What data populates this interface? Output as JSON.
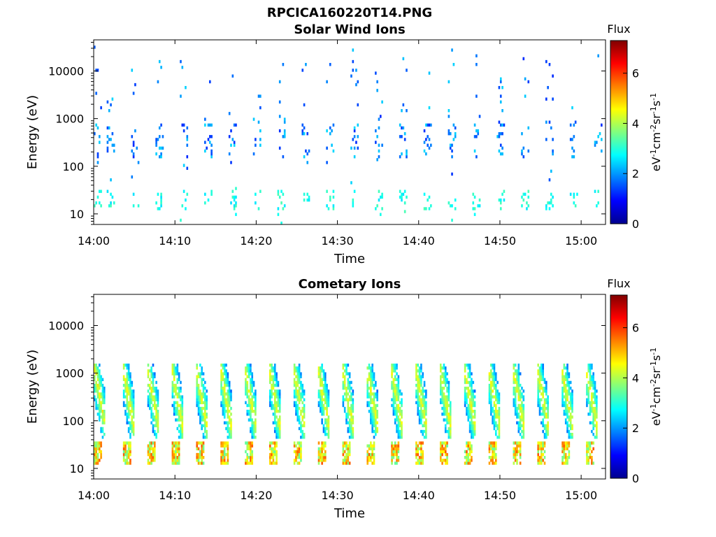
{
  "figure_title": "RPCICA160220T14.PNG",
  "colorbar": {
    "label": "Flux",
    "unit_parts": [
      "eV",
      "-1",
      "cm",
      "-2",
      "sr",
      "-1",
      "s",
      "-1"
    ],
    "range": [
      0,
      7.3
    ],
    "ticks": [
      "0",
      "2",
      "4",
      "6"
    ],
    "colormap": "jet"
  },
  "chart_data": [
    {
      "type": "heatmap",
      "title": "Solar Wind Ions",
      "xlabel": "Time",
      "ylabel": "Energy (eV)",
      "yscale": "log",
      "ylim": [
        6,
        45000
      ],
      "xlim": [
        "14:00",
        "15:03"
      ],
      "xticks": [
        "14:00",
        "14:10",
        "14:20",
        "14:30",
        "14:40",
        "14:50",
        "15:00"
      ],
      "yticks": [
        "10",
        "100",
        "1000",
        "10000"
      ],
      "z_range": [
        0,
        7.3
      ],
      "pattern": "sparse",
      "bursts_min": [
        0,
        1.5,
        4.5,
        7.5,
        10.5,
        13.5,
        16.5,
        19.5,
        22.5,
        25.5,
        28.5,
        31.5,
        34.5,
        37.5,
        40.5,
        43.5,
        46.5,
        49.5,
        52.5,
        55.5,
        58.5,
        61.5
      ]
    },
    {
      "type": "heatmap",
      "title": "Cometary Ions",
      "xlabel": "Time",
      "ylabel": "Energy (eV)",
      "yscale": "log",
      "ylim": [
        6,
        45000
      ],
      "xlim": [
        "14:00",
        "15:03"
      ],
      "xticks": [
        "14:00",
        "14:10",
        "14:20",
        "14:30",
        "14:40",
        "14:50",
        "15:00"
      ],
      "yticks": [
        "10",
        "100",
        "1000",
        "10000"
      ],
      "z_range": [
        0,
        7.3
      ],
      "pattern": "dense",
      "bursts_min": [
        0,
        3.5,
        6.5,
        9.5,
        12.5,
        15.5,
        18.5,
        21.5,
        24.5,
        27.5,
        30.5,
        33.5,
        36.5,
        39.5,
        42.5,
        45.5,
        48.5,
        51.5,
        54.5,
        57.5,
        60.5
      ]
    }
  ]
}
